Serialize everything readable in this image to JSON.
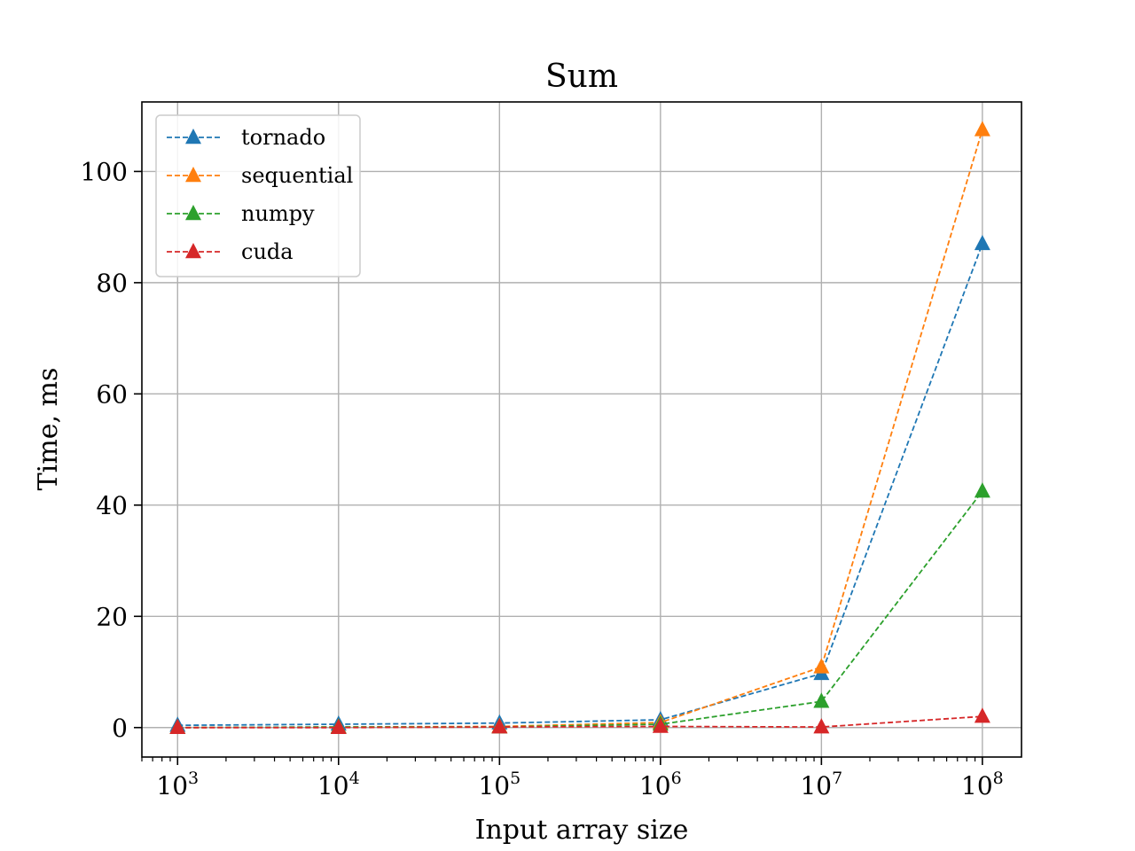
{
  "chart_data": {
    "type": "line",
    "title": "Sum",
    "xlabel": "Input array size",
    "ylabel": "Time, ms",
    "xscale": "log",
    "x": [
      1000,
      10000,
      100000,
      1000000,
      10000000,
      100000000
    ],
    "x_tick_labels": [
      {
        "base": "10",
        "exp": "3"
      },
      {
        "base": "10",
        "exp": "4"
      },
      {
        "base": "10",
        "exp": "5"
      },
      {
        "base": "10",
        "exp": "6"
      },
      {
        "base": "10",
        "exp": "7"
      },
      {
        "base": "10",
        "exp": "8"
      }
    ],
    "xlim": [
      600,
      175000000
    ],
    "y_ticks": [
      0,
      20,
      40,
      60,
      80,
      100
    ],
    "ylim": [
      -5.3,
      112.5
    ],
    "grid": true,
    "legend_position": "upper-left",
    "marker": "triangle",
    "line_style": "dashed",
    "series": [
      {
        "name": "tornado",
        "color": "#1f77b4",
        "values": [
          0.4,
          0.6,
          0.8,
          1.4,
          9.7,
          87.0
        ]
      },
      {
        "name": "sequential",
        "color": "#ff7f0e",
        "values": [
          0.0,
          0.1,
          0.2,
          0.9,
          10.9,
          107.5
        ]
      },
      {
        "name": "numpy",
        "color": "#2ca02c",
        "values": [
          0.0,
          0.1,
          0.1,
          0.6,
          4.7,
          42.5
        ]
      },
      {
        "name": "cuda",
        "color": "#d62728",
        "values": [
          0.0,
          0.0,
          0.1,
          0.2,
          0.1,
          2.0
        ]
      }
    ]
  }
}
